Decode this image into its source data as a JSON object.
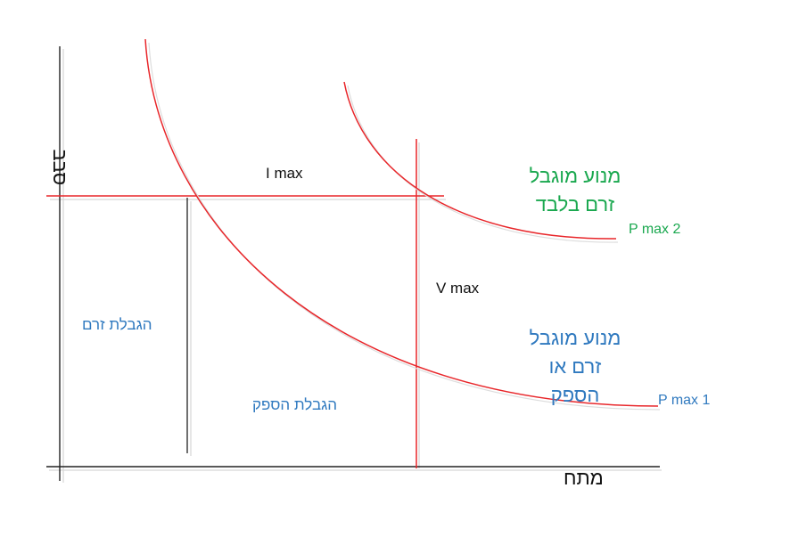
{
  "axes": {
    "x_label": "מתח",
    "y_label": "סבב"
  },
  "lines": {
    "i_max_label": "I max",
    "v_max_label": "V max"
  },
  "curves": {
    "p_max_1_label": "P max 1",
    "p_max_2_label": "P max 2"
  },
  "regions": {
    "current_limit": "הגבלת זרם",
    "power_limit": "הגבלת הספק",
    "current_only": {
      "line1": "מנוע מוגבל",
      "line2": "זרם בלבד"
    },
    "current_or_power": {
      "line1": "מנוע מוגבל",
      "line2": "זרם או",
      "line3": "הספק"
    }
  },
  "colors": {
    "curve": "#e8262a",
    "axis": "#222222",
    "blue_text": "#2f79bf",
    "green_text": "#1aa84f"
  }
}
